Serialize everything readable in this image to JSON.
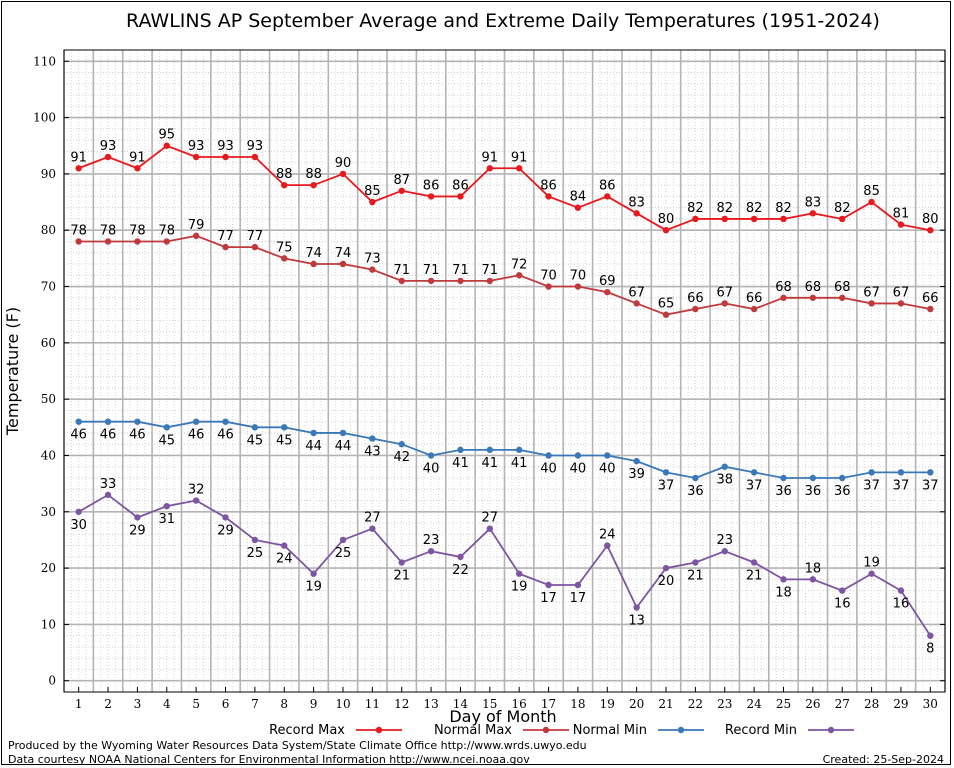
{
  "chart_data": {
    "type": "line",
    "title": "RAWLINS AP September Average and Extreme Daily Temperatures (1951-2024)",
    "xlabel": "Day of Month",
    "ylabel": "Temperature (F)",
    "ylim": [
      -2,
      112
    ],
    "yticks": [
      0,
      10,
      20,
      30,
      40,
      50,
      60,
      70,
      80,
      90,
      100,
      110
    ],
    "x": [
      1,
      2,
      3,
      4,
      5,
      6,
      7,
      8,
      9,
      10,
      11,
      12,
      13,
      14,
      15,
      16,
      17,
      18,
      19,
      20,
      21,
      22,
      23,
      24,
      25,
      26,
      27,
      28,
      29,
      30
    ],
    "grid": true,
    "legend_position": "bottom",
    "series": [
      {
        "name": "Record Max",
        "color": "#e8191e",
        "label_pos": "above",
        "values": [
          91,
          93,
          91,
          95,
          93,
          93,
          93,
          88,
          88,
          90,
          85,
          87,
          86,
          86,
          91,
          91,
          86,
          84,
          86,
          83,
          80,
          82,
          82,
          82,
          82,
          83,
          82,
          85,
          81,
          80
        ]
      },
      {
        "name": "Normal Max",
        "color": "#c0393d",
        "label_pos": "above",
        "values": [
          78,
          78,
          78,
          78,
          79,
          77,
          77,
          75,
          74,
          74,
          73,
          71,
          71,
          71,
          71,
          72,
          70,
          70,
          69,
          67,
          65,
          66,
          67,
          66,
          68,
          68,
          68,
          67,
          67,
          66
        ]
      },
      {
        "name": "Normal Min",
        "color": "#3a78b8",
        "label_pos": "below",
        "values": [
          46,
          46,
          46,
          45,
          46,
          46,
          45,
          45,
          44,
          44,
          43,
          42,
          40,
          41,
          41,
          41,
          40,
          40,
          40,
          39,
          37,
          36,
          38,
          37,
          36,
          36,
          36,
          37,
          37,
          37
        ]
      },
      {
        "name": "Record Min",
        "color": "#7d55a0",
        "label_pos": "mixed",
        "values": [
          30,
          33,
          29,
          31,
          32,
          29,
          25,
          24,
          19,
          25,
          27,
          21,
          23,
          22,
          27,
          19,
          17,
          17,
          24,
          13,
          20,
          21,
          23,
          21,
          18,
          18,
          16,
          19,
          16,
          8
        ]
      }
    ]
  },
  "footer": {
    "produced": "Produced by the Wyoming Water Resources Data System/State Climate Office http://www.wrds.uwyo.edu",
    "courtesy": "Data courtesy NOAA National Centers for Environmental Information http://www.ncei.noaa.gov",
    "created": "Created:  25-Sep-2024"
  }
}
